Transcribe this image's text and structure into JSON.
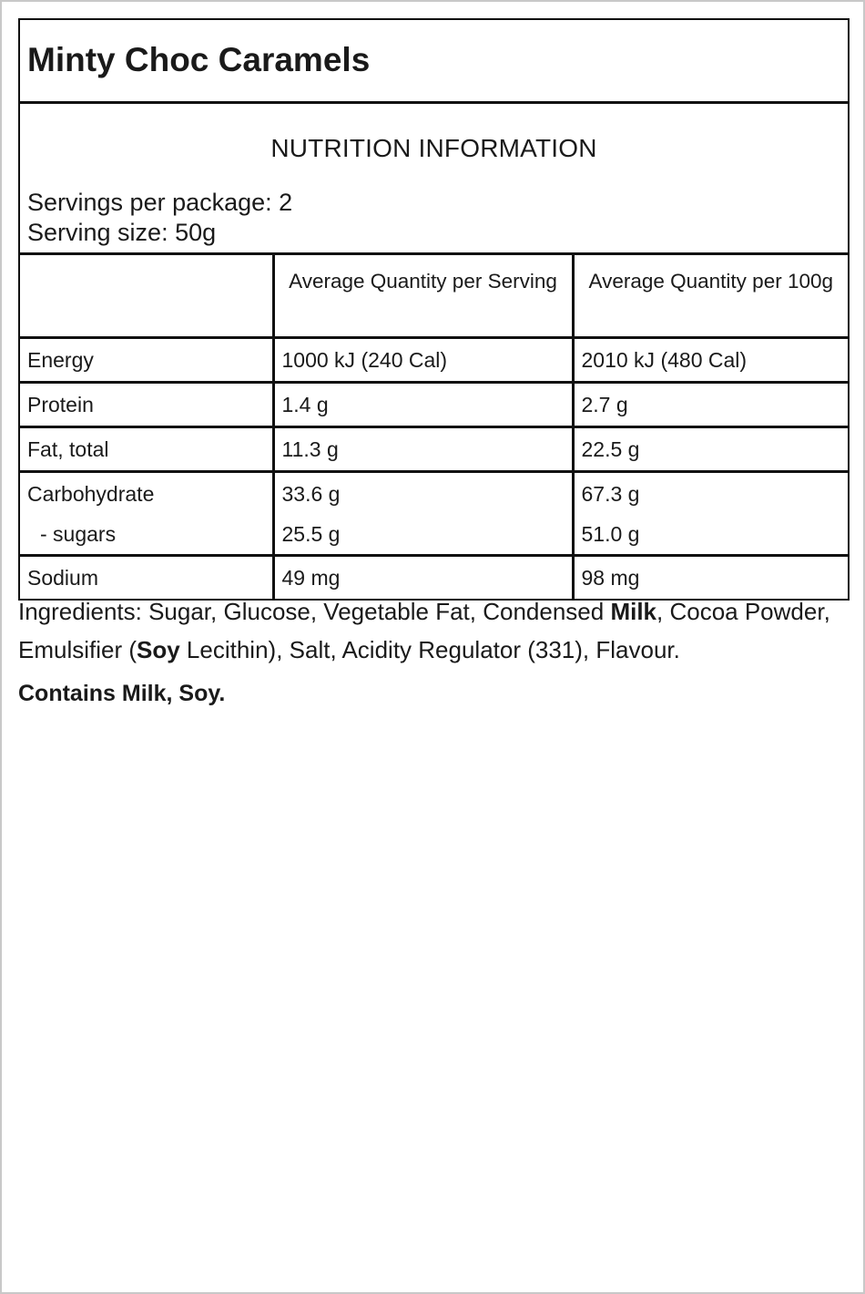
{
  "product": {
    "title": "Minty Choc Caramels"
  },
  "panel": {
    "heading": "NUTRITION INFORMATION",
    "servings_per_package": "Servings per package: 2",
    "serving_size": "Serving size: 50g"
  },
  "table": {
    "headers": [
      "",
      "Average Quantity per Serving",
      "Average Quantity per 100g"
    ],
    "rows": [
      {
        "name": "Energy",
        "per_serving": "1000 kJ (240 Cal)",
        "per_100g": "2010 kJ (480 Cal)"
      },
      {
        "name": "Protein",
        "per_serving": "1.4 g",
        "per_100g": "2.7 g"
      },
      {
        "name": "Fat, total",
        "per_serving": "11.3 g",
        "per_100g": "22.5 g"
      },
      {
        "name": "Carbohydrate",
        "per_serving": "33.6 g",
        "per_100g": "67.3 g",
        "sub_name": "- sugars",
        "sub_per_serving": "25.5 g",
        "sub_per_100g": "51.0 g"
      },
      {
        "name": "Sodium",
        "per_serving": "49 mg",
        "per_100g": "98 mg"
      }
    ]
  },
  "ingredients": {
    "p1": "Ingredients: Sugar, Glucose, Vegetable Fat, Condensed ",
    "b1": "Milk",
    "p2": ", Cocoa Powder, Emulsifier (",
    "b2": "Soy",
    "p3": " Lecithin), Salt, Acidity Regulator (331), Flavour."
  },
  "allergens": {
    "contains": "Contains Milk, Soy."
  }
}
